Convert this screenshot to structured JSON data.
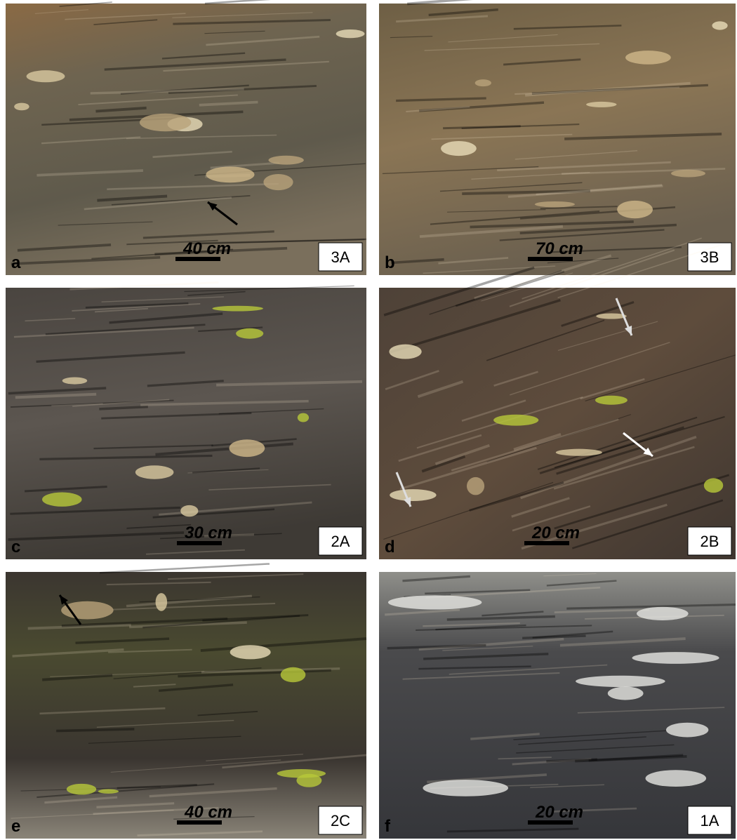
{
  "panels": [
    {
      "letter": "a",
      "scale": "40 cm",
      "station": "3A"
    },
    {
      "letter": "b",
      "scale": "70 cm",
      "station": "3B"
    },
    {
      "letter": "c",
      "scale": "30 cm",
      "station": "2A"
    },
    {
      "letter": "d",
      "scale": "20 cm",
      "station": "2B"
    },
    {
      "letter": "e",
      "scale": "40 cm",
      "station": "2C"
    },
    {
      "letter": "f",
      "scale": "20 cm",
      "station": "1A"
    }
  ]
}
